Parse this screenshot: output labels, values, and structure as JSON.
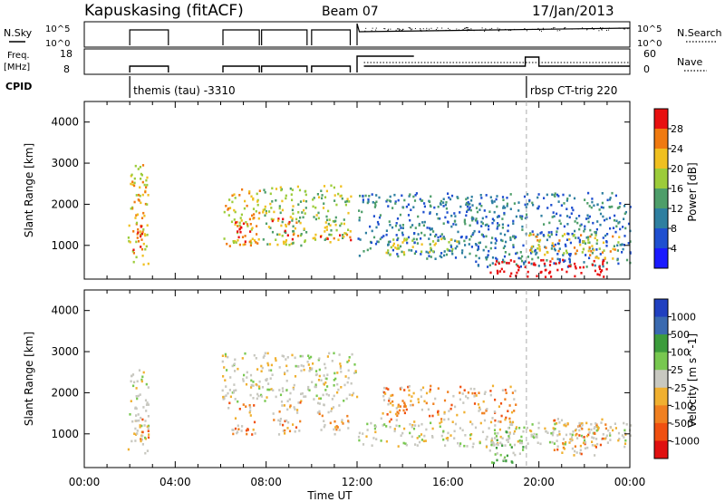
{
  "header": {
    "station": "Kapuskasing (fitACF)",
    "beam": "Beam 07",
    "date": "17/Jan/2013"
  },
  "colors": {
    "power_scale": [
      "#1a1aff",
      "#1f4fd0",
      "#2e7fa0",
      "#4e9e6a",
      "#9ccc3a",
      "#f0c020",
      "#f07a10",
      "#e81010"
    ],
    "velocity_scale": [
      "#e01010",
      "#f05010",
      "#f08020",
      "#f0b030",
      "#c8c8c0",
      "#78c850",
      "#3c9c3c",
      "#3a6ab0",
      "#2040c0"
    ],
    "ground_scatter": "#c8c8c0"
  },
  "panels": {
    "nsky": {
      "left_label": "N.Sky",
      "right_label": "N.Search",
      "left_ticks": [
        "10^5",
        "10^0"
      ],
      "right_ticks": [
        "10^5",
        "10^0"
      ]
    },
    "freq": {
      "left_label_1": "Freq.",
      "left_label_2": "[MHz]",
      "right_label": "Nave",
      "left_ticks": [
        "18",
        "8"
      ],
      "right_ticks": [
        "60",
        "0"
      ]
    },
    "cpid": {
      "label": "CPID",
      "marks": [
        {
          "time_h": 2.0,
          "text": "themis (tau) -3310"
        },
        {
          "time_h": 19.45,
          "text": "rbsp CT-trig 220"
        }
      ]
    }
  },
  "chart_data": [
    {
      "type": "heatmap",
      "name": "power",
      "ylabel": "Slant Range [km]",
      "ylim": [
        180,
        4500
      ],
      "yticks": [
        1000,
        2000,
        3000,
        4000
      ],
      "xlim": [
        0,
        24
      ],
      "colorbar": {
        "label": "Power [dB]",
        "ticks": [
          "4",
          "8",
          "12",
          "16",
          "20",
          "24",
          "28"
        ],
        "range": [
          0,
          32
        ]
      },
      "scatter_patches": [
        {
          "t0": 1.9,
          "t1": 2.8,
          "r0": 500,
          "r1": 3000,
          "level": 5
        },
        {
          "t0": 2.1,
          "t1": 2.6,
          "r0": 900,
          "r1": 1600,
          "level": 7
        },
        {
          "t0": 6.1,
          "t1": 7.7,
          "r0": 1000,
          "r1": 2400,
          "level": 5
        },
        {
          "t0": 6.6,
          "t1": 7.5,
          "r0": 1100,
          "r1": 1600,
          "level": 7
        },
        {
          "t0": 7.8,
          "t1": 9.8,
          "r0": 1000,
          "r1": 2500,
          "level": 4
        },
        {
          "t0": 8.2,
          "t1": 9.4,
          "r0": 1100,
          "r1": 1700,
          "level": 6
        },
        {
          "t0": 10.0,
          "t1": 11.7,
          "r0": 1000,
          "r1": 2500,
          "level": 4
        },
        {
          "t0": 10.3,
          "t1": 11.7,
          "r0": 1050,
          "r1": 1300,
          "level": 7
        },
        {
          "t0": 12.0,
          "t1": 17.0,
          "r0": 700,
          "r1": 2300,
          "level": 2
        },
        {
          "t0": 13.2,
          "t1": 16.5,
          "r0": 800,
          "r1": 1200,
          "level": 4
        },
        {
          "t0": 17.0,
          "t1": 24.0,
          "r0": 500,
          "r1": 2300,
          "level": 2
        },
        {
          "t0": 17.8,
          "t1": 23.0,
          "r0": 250,
          "r1": 700,
          "level": 8
        },
        {
          "t0": 19.5,
          "t1": 23.5,
          "r0": 700,
          "r1": 1300,
          "level": 5
        }
      ]
    },
    {
      "type": "heatmap",
      "name": "velocity",
      "ylabel": "Slant Range [km]",
      "ylim": [
        180,
        4500
      ],
      "yticks": [
        1000,
        2000,
        3000,
        4000
      ],
      "xlim": [
        0,
        24
      ],
      "xlabel": "Time UT",
      "xticks": [
        "00:00",
        "04:00",
        "08:00",
        "12:00",
        "16:00",
        "20:00",
        "00:00"
      ],
      "colorbar": {
        "label": "Velocity [m s^-1]",
        "ticks": [
          "1000",
          "500",
          "100",
          "25",
          "-25",
          "-100",
          "-500",
          "-1000"
        ]
      },
      "scatter_patches": [
        {
          "t0": 1.9,
          "t1": 2.8,
          "r0": 500,
          "r1": 2600,
          "level": 4
        },
        {
          "t0": 2.2,
          "t1": 2.8,
          "r0": 900,
          "r1": 1700,
          "level": 2
        },
        {
          "t0": 6.0,
          "t1": 12.0,
          "r0": 1800,
          "r1": 3000,
          "level": 4
        },
        {
          "t0": 6.3,
          "t1": 7.5,
          "r0": 1000,
          "r1": 1800,
          "level": 2
        },
        {
          "t0": 8.2,
          "t1": 9.5,
          "r0": 1000,
          "r1": 1800,
          "level": 2
        },
        {
          "t0": 10.2,
          "t1": 11.6,
          "r0": 1000,
          "r1": 1800,
          "level": 3
        },
        {
          "t0": 12.0,
          "t1": 24.0,
          "r0": 700,
          "r1": 1300,
          "level": 4
        },
        {
          "t0": 13.0,
          "t1": 19.0,
          "r0": 1300,
          "r1": 2200,
          "level": 2
        },
        {
          "t0": 17.8,
          "t1": 19.5,
          "r0": 300,
          "r1": 1200,
          "level": 5
        },
        {
          "t0": 20.5,
          "t1": 23.0,
          "r0": 500,
          "r1": 1400,
          "level": 2
        }
      ]
    }
  ]
}
